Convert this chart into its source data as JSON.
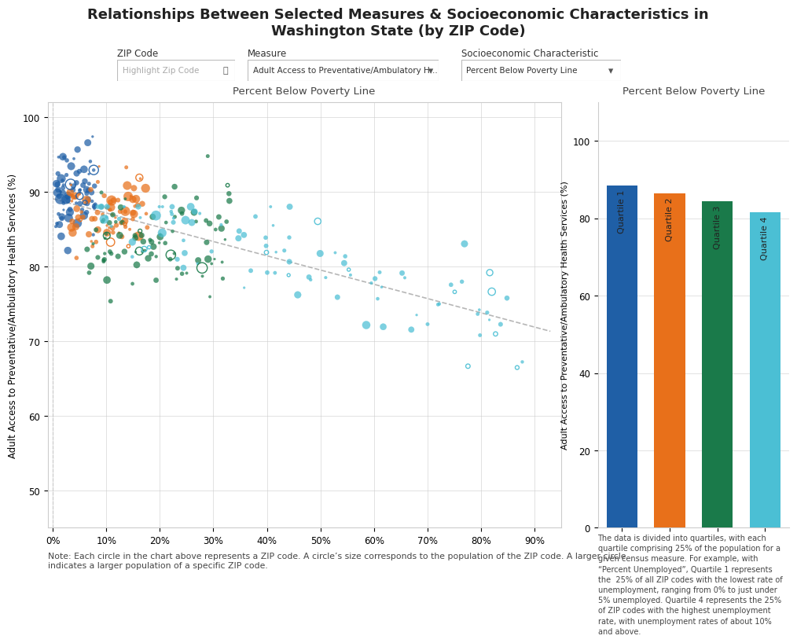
{
  "title": "Relationships Between Selected Measures & Socioeconomic Characteristics in\nWashington State (by ZIP Code)",
  "scatter_ylabel": "Adult Access to Preventative/Ambulatory Health Services (%)",
  "scatter_title": "Percent Below Poverty Line",
  "bar_title": "Percent Below Poverty Line",
  "bar_ylabel": "Adult Access to Preventative/Ambulatory Health Services (%)",
  "bar_categories": [
    "Quartile 1",
    "Quartile 2",
    "Quartile 3",
    "Quartile 4"
  ],
  "bar_values": [
    88.5,
    86.5,
    84.5,
    81.5
  ],
  "bar_colors": [
    "#1f5fa6",
    "#e8701a",
    "#1a7a4a",
    "#4bbfd4"
  ],
  "quartile_colors": [
    "#1f5fa6",
    "#e8701a",
    "#1a7a4a",
    "#4bbfd4"
  ],
  "scatter_ylim": [
    45,
    102
  ],
  "scatter_xlim": [
    -1,
    95
  ],
  "bar_ylim": [
    0,
    110
  ],
  "background_color": "#ffffff",
  "grid_color": "#cccccc",
  "trend_color": "#aaaaaa",
  "note_text": "Note: Each circle in the chart above represents a ZIP code. A circle’s size corresponds to the population of the ZIP code. A larger circle\nindicates a larger population of a specific ZIP code.",
  "legend_note": "The data is divided into quartiles, with each\nquartile comprising 25% of the population for a\ngiven census measure. For example, with\n“Percent Unemployed”, Quartile 1 represents\nthe  25% of all ZIP codes with the lowest rate of\nunemployment, ranging from 0% to just under\n5% unemployed. Quartile 4 represents the 25%\nof ZIP codes with the highest unemployment\nrate, with unemployment rates of about 10%\nand above.",
  "ui_zip_label": "ZIP Code",
  "ui_zip_placeholder": "Highlight Zip Code",
  "ui_measure_label": "Measure",
  "ui_measure_value": "Adult Access to Preventative/Ambulatory H...",
  "ui_socio_label": "Socioeconomic Characteristic",
  "ui_socio_value": "Percent Below Poverty Line",
  "scatter_xticks": [
    0,
    10,
    20,
    30,
    40,
    50,
    60,
    70,
    80,
    90
  ],
  "scatter_yticks": [
    50,
    60,
    70,
    80,
    90,
    100
  ],
  "scatter_xlabels": [
    "0%",
    "10%",
    "20%",
    "30%",
    "40%",
    "50%",
    "60%",
    "70%",
    "80%",
    "90%"
  ],
  "scatter_ylabels": [
    "50",
    "60",
    "70",
    "80",
    "90",
    "100"
  ],
  "bar_yticks": [
    0,
    20,
    40,
    60,
    80,
    100
  ],
  "seed": 42
}
